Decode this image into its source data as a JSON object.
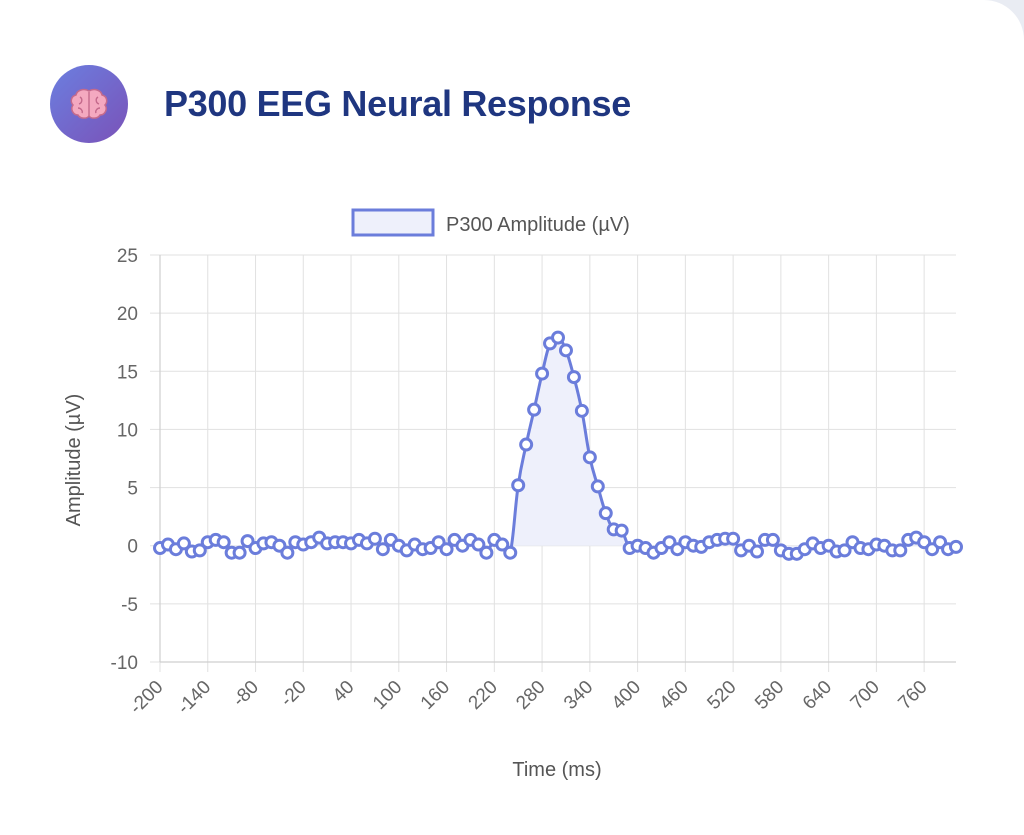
{
  "header": {
    "title": "P300 EEG Neural Response",
    "icon": "brain-icon"
  },
  "colors": {
    "line": "#6b7ddb",
    "fill": "#eef0fb",
    "title": "#1f3680",
    "grid": "#e1e1e1"
  },
  "chart_data": {
    "type": "line",
    "title": "",
    "xlabel": "Time (ms)",
    "ylabel": "Amplitude (µV)",
    "ylim": [
      -10,
      25
    ],
    "yticks": [
      "25",
      "20",
      "15",
      "10",
      "5",
      "0",
      "-5",
      "-10"
    ],
    "x_tick_labels": [
      "-200",
      "-140",
      "-80",
      "-20",
      "40",
      "100",
      "160",
      "220",
      "280",
      "340",
      "400",
      "460",
      "520",
      "580",
      "640",
      "700",
      "760"
    ],
    "legend": "top",
    "grid": true,
    "fill_area": true,
    "series": [
      {
        "name": "P300 Amplitude (µV)",
        "x": [
          -200,
          -190,
          -180,
          -170,
          -160,
          -150,
          -140,
          -130,
          -120,
          -110,
          -100,
          -90,
          -80,
          -70,
          -60,
          -50,
          -40,
          -30,
          -20,
          -10,
          0,
          10,
          20,
          30,
          40,
          50,
          60,
          70,
          80,
          90,
          100,
          110,
          120,
          130,
          140,
          150,
          160,
          170,
          180,
          190,
          200,
          210,
          220,
          230,
          240,
          250,
          260,
          270,
          280,
          290,
          300,
          310,
          320,
          330,
          340,
          350,
          360,
          370,
          380,
          390,
          400,
          410,
          420,
          430,
          440,
          450,
          460,
          470,
          480,
          490,
          500,
          510,
          520,
          530,
          540,
          550,
          560,
          570,
          580,
          590,
          600,
          610,
          620,
          630,
          640,
          650,
          660,
          670,
          680,
          690,
          700,
          710,
          720,
          730,
          740,
          750,
          760,
          770,
          780,
          790,
          800
        ],
        "values": [
          -0.2,
          0.1,
          -0.3,
          0.2,
          -0.5,
          -0.4,
          0.3,
          0.5,
          0.3,
          -0.6,
          -0.6,
          0.4,
          -0.2,
          0.2,
          0.3,
          0.0,
          -0.6,
          0.3,
          0.1,
          0.3,
          0.7,
          0.2,
          0.3,
          0.3,
          0.2,
          0.5,
          0.2,
          0.6,
          -0.3,
          0.5,
          0.0,
          -0.4,
          0.1,
          -0.3,
          -0.2,
          0.3,
          -0.3,
          0.5,
          0.0,
          0.5,
          0.1,
          -0.6,
          0.5,
          0.1,
          -0.6,
          5.2,
          8.7,
          11.7,
          14.8,
          17.4,
          17.9,
          16.8,
          14.5,
          11.6,
          7.6,
          5.1,
          2.8,
          1.4,
          1.3,
          -0.2,
          0.0,
          -0.2,
          -0.6,
          -0.2,
          0.3,
          -0.3,
          0.3,
          0.0,
          -0.1,
          0.3,
          0.5,
          0.6,
          0.6,
          -0.4,
          0.0,
          -0.5,
          0.5,
          0.5,
          -0.4,
          -0.7,
          -0.7,
          -0.3,
          0.2,
          -0.2,
          0.0,
          -0.5,
          -0.4,
          0.3,
          -0.2,
          -0.3,
          0.1,
          0.0,
          -0.4,
          -0.4,
          0.5,
          0.7,
          0.3,
          -0.3,
          0.3,
          -0.3,
          -0.1
        ]
      }
    ]
  }
}
